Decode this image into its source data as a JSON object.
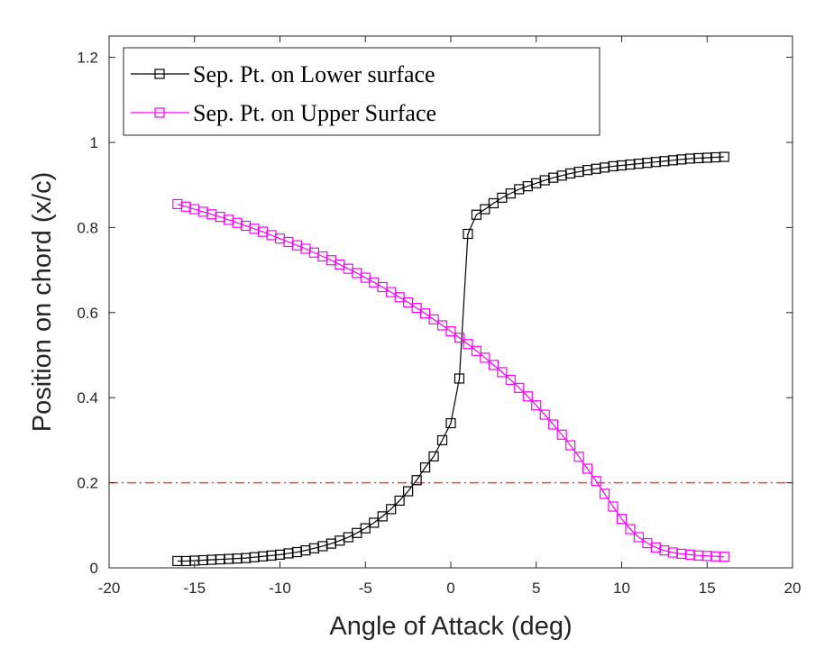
{
  "chart_data": {
    "type": "line",
    "title": "",
    "xlabel": "Angle of Attack (deg)",
    "ylabel": "Position on chord (x/c)",
    "xlim": [
      -20,
      20
    ],
    "ylim": [
      0,
      1.25
    ],
    "xticks": [
      -20,
      -15,
      -10,
      -5,
      0,
      5,
      10,
      15,
      20
    ],
    "xtick_labels": [
      "-20",
      "-15",
      "-10",
      "-5",
      "0",
      "5",
      "10",
      "15",
      "20"
    ],
    "yticks": [
      0,
      0.2,
      0.4,
      0.6,
      0.8,
      1,
      1.2
    ],
    "ytick_labels": [
      "0",
      "0.2",
      "0.4",
      "0.6",
      "0.8",
      "1",
      "1.2"
    ],
    "grid": false,
    "legend_position": "top-left",
    "reference_line": {
      "y": 0.2,
      "style": "dash-dot",
      "color": "#e8463a"
    },
    "x": [
      -16,
      -15.5,
      -15,
      -14.5,
      -14,
      -13.5,
      -13,
      -12.5,
      -12,
      -11.5,
      -11,
      -10.5,
      -10,
      -9.5,
      -9,
      -8.5,
      -8,
      -7.5,
      -7,
      -6.5,
      -6,
      -5.5,
      -5,
      -4.5,
      -4,
      -3.5,
      -3,
      -2.5,
      -2,
      -1.5,
      -1,
      -0.5,
      0,
      0.5,
      1,
      1.5,
      2,
      2.5,
      3,
      3.5,
      4,
      4.5,
      5,
      5.5,
      6,
      6.5,
      7,
      7.5,
      8,
      8.5,
      9,
      9.5,
      10,
      10.5,
      11,
      11.5,
      12,
      12.5,
      13,
      13.5,
      14,
      14.5,
      15,
      15.5,
      16
    ],
    "series": [
      {
        "name": "Sep. Pt. on Lower surface",
        "color": "#000000",
        "marker": "square",
        "values": [
          0.016,
          0.016,
          0.017,
          0.018,
          0.019,
          0.02,
          0.021,
          0.022,
          0.023,
          0.025,
          0.027,
          0.029,
          0.031,
          0.034,
          0.037,
          0.041,
          0.046,
          0.051,
          0.057,
          0.064,
          0.072,
          0.082,
          0.093,
          0.106,
          0.121,
          0.138,
          0.158,
          0.18,
          0.206,
          0.236,
          0.262,
          0.3,
          0.34,
          0.445,
          0.785,
          0.83,
          0.843,
          0.857,
          0.87,
          0.88,
          0.89,
          0.897,
          0.904,
          0.911,
          0.917,
          0.922,
          0.927,
          0.931,
          0.935,
          0.938,
          0.941,
          0.944,
          0.946,
          0.948,
          0.95,
          0.952,
          0.954,
          0.956,
          0.958,
          0.96,
          0.962,
          0.963,
          0.964,
          0.965,
          0.966
        ]
      },
      {
        "name": "Sep. Pt. on Upper Surface",
        "color": "#ff00ff",
        "marker": "square",
        "values": [
          0.855,
          0.849,
          0.843,
          0.837,
          0.831,
          0.825,
          0.818,
          0.811,
          0.804,
          0.797,
          0.79,
          0.782,
          0.774,
          0.766,
          0.758,
          0.75,
          0.741,
          0.732,
          0.723,
          0.713,
          0.703,
          0.693,
          0.682,
          0.671,
          0.66,
          0.648,
          0.636,
          0.624,
          0.611,
          0.598,
          0.584,
          0.57,
          0.556,
          0.541,
          0.526,
          0.51,
          0.494,
          0.477,
          0.46,
          0.442,
          0.423,
          0.403,
          0.382,
          0.36,
          0.337,
          0.313,
          0.288,
          0.261,
          0.233,
          0.204,
          0.174,
          0.144,
          0.115,
          0.091,
          0.072,
          0.058,
          0.048,
          0.041,
          0.036,
          0.033,
          0.031,
          0.029,
          0.028,
          0.027,
          0.026
        ]
      }
    ]
  }
}
